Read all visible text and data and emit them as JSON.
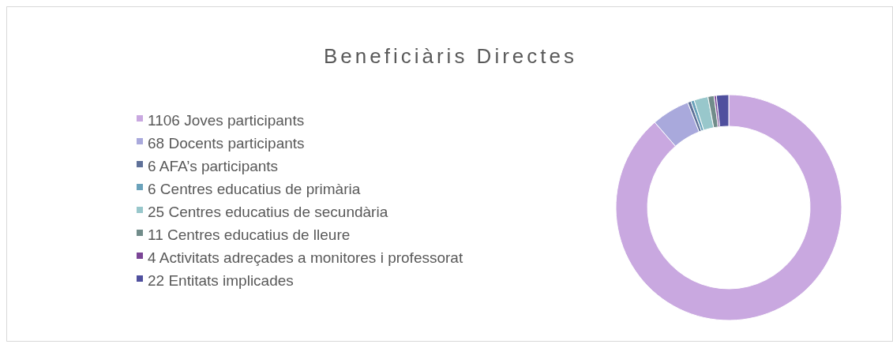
{
  "chart_data": {
    "type": "donut",
    "title": "Beneficiàris Directes",
    "categories": [
      "1106 Joves participants",
      "68 Docents participants",
      "6 AFA’s participants",
      "6 Centres educatius de primària",
      "25 Centres educatius de secundària",
      "11 Centres educatius de lleure",
      "4 Activitats adreçades a monitores i professorat",
      "22 Entitats implicades"
    ],
    "values": [
      1106,
      68,
      6,
      6,
      25,
      11,
      4,
      22
    ],
    "colors": [
      "#c9a8e0",
      "#a9a9dc",
      "#5f7199",
      "#6aa2bb",
      "#98c7cb",
      "#718c8a",
      "#7b4596",
      "#50509e"
    ],
    "legend": "left"
  }
}
